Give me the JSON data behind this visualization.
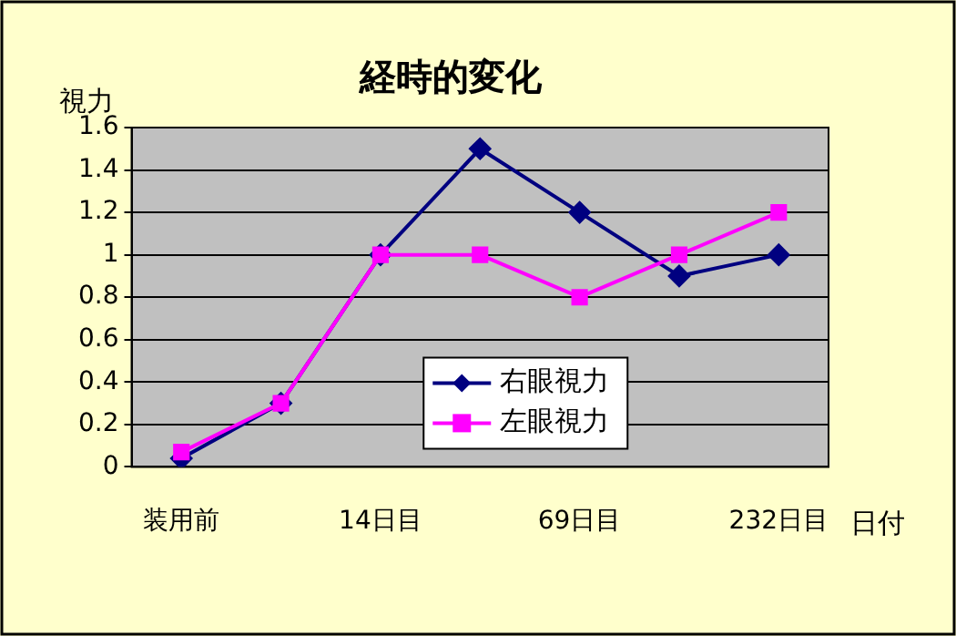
{
  "chart_data": {
    "type": "line",
    "title": "経時的変化",
    "ylabel": "視力",
    "xlabel": "日付",
    "categories": [
      "装用前",
      null,
      "14日目",
      null,
      "69日目",
      null,
      "232日目"
    ],
    "series": [
      {
        "name": "右眼視力",
        "color": "#000080",
        "marker": "diamond",
        "values": [
          0.04,
          0.3,
          1.0,
          1.5,
          1.2,
          0.9,
          1.0
        ]
      },
      {
        "name": "左眼視力",
        "color": "#ff00ff",
        "marker": "square",
        "values": [
          0.07,
          0.3,
          1.0,
          1.0,
          0.8,
          1.0,
          1.2
        ]
      }
    ],
    "ylim": [
      0,
      1.6
    ],
    "yticks": [
      0,
      0.2,
      0.4,
      0.6,
      0.8,
      1,
      1.2,
      1.4,
      1.6
    ],
    "grid": "y",
    "legend": "bottom",
    "line_style": "solid"
  }
}
